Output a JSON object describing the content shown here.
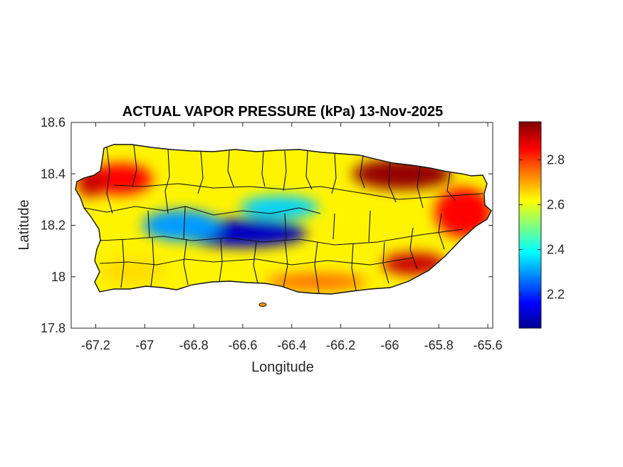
{
  "chart_data": {
    "type": "heatmap",
    "title": "ACTUAL VAPOR PRESSURE (kPa) 13-Nov-2025",
    "xlabel": "Longitude",
    "ylabel": "Latitude",
    "xlim": [
      -67.3,
      -65.58
    ],
    "ylim": [
      17.8,
      18.6
    ],
    "xticks": [
      -67.2,
      -67,
      -66.8,
      -66.6,
      -66.4,
      -66.2,
      -66,
      -65.8,
      -65.6
    ],
    "xtick_labels": [
      "-67.2",
      "-67",
      "-66.8",
      "-66.6",
      "-66.4",
      "-66.2",
      "-66",
      "-65.8",
      "-65.6"
    ],
    "yticks": [
      17.8,
      18,
      18.2,
      18.4,
      18.6
    ],
    "ytick_labels": [
      "17.8",
      "18",
      "18.2",
      "18.4",
      "18.6"
    ],
    "colorbar": {
      "colormap": "jet",
      "range": [
        2.05,
        2.97
      ],
      "ticks": [
        2.2,
        2.4,
        2.6,
        2.8
      ],
      "tick_labels": [
        "2.2",
        "2.4",
        "2.6",
        "2.8"
      ],
      "colors": [
        "#00008f",
        "#0000ff",
        "#00ffff",
        "#ffff00",
        "#ff0000",
        "#800000"
      ]
    },
    "grid": false,
    "region": "Puerto Rico, municipal boundaries",
    "field_summary": [
      {
        "area": "central mountains",
        "lon": -66.6,
        "lat": 18.17,
        "value": 2.1
      },
      {
        "area": "west-central interior",
        "lon": -66.85,
        "lat": 18.2,
        "value": 2.3
      },
      {
        "area": "north-central interior",
        "lon": -66.45,
        "lat": 18.27,
        "value": 2.35
      },
      {
        "area": "northwest coast",
        "lon": -67.1,
        "lat": 18.38,
        "value": 2.85
      },
      {
        "area": "western coast",
        "lon": -67.22,
        "lat": 18.37,
        "value": 2.9
      },
      {
        "area": "northeast",
        "lon": -65.95,
        "lat": 18.4,
        "value": 2.95
      },
      {
        "area": "east coast",
        "lon": -65.7,
        "lat": 18.25,
        "value": 2.85
      },
      {
        "area": "southeast",
        "lon": -65.9,
        "lat": 18.05,
        "value": 2.9
      },
      {
        "area": "south coast",
        "lon": -66.3,
        "lat": 17.98,
        "value": 2.75
      },
      {
        "area": "southwest",
        "lon": -67.05,
        "lat": 18.02,
        "value": 2.65
      }
    ]
  }
}
